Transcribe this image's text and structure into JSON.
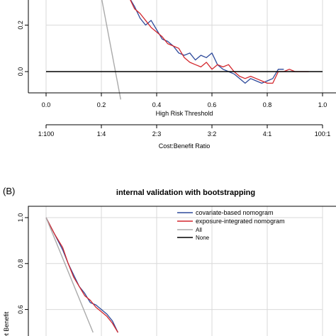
{
  "chart_data": [
    {
      "type": "line",
      "panel": "",
      "title": "",
      "xlabel": "High Risk Threshold",
      "ylabel": "",
      "xlim": [
        0,
        1
      ],
      "ylim": [
        -0.1,
        0.32
      ],
      "x_ticks": [
        "0.0",
        "0.2",
        "0.4",
        "0.6",
        "0.8",
        "1.0"
      ],
      "y_ticks": [
        "0.0",
        "0.2"
      ],
      "secondary_axis": {
        "label": "Cost:Benefit Ratio",
        "ticks": [
          "1:100",
          "1:4",
          "2:3",
          "3:2",
          "4:1",
          "100:1"
        ]
      },
      "series": [
        {
          "color": "#2e4a9b",
          "x": [
            0.3,
            0.32,
            0.34,
            0.36,
            0.38,
            0.4,
            0.42,
            0.44,
            0.46,
            0.48,
            0.5,
            0.52,
            0.54,
            0.56,
            0.58,
            0.6,
            0.62,
            0.64,
            0.66,
            0.68,
            0.7,
            0.72,
            0.74,
            0.76,
            0.78,
            0.8,
            0.82,
            0.84,
            0.86
          ],
          "y": [
            0.32,
            0.28,
            0.23,
            0.2,
            0.22,
            0.18,
            0.14,
            0.13,
            0.11,
            0.08,
            0.07,
            0.08,
            0.05,
            0.07,
            0.06,
            0.08,
            0.03,
            0.01,
            0.0,
            -0.01,
            -0.03,
            -0.05,
            -0.03,
            -0.04,
            -0.05,
            -0.04,
            -0.03,
            0.01,
            0.01
          ]
        },
        {
          "color": "#d3272d",
          "x": [
            0.3,
            0.32,
            0.34,
            0.36,
            0.38,
            0.4,
            0.42,
            0.44,
            0.46,
            0.48,
            0.5,
            0.52,
            0.54,
            0.56,
            0.58,
            0.6,
            0.62,
            0.64,
            0.66,
            0.68,
            0.7,
            0.72,
            0.74,
            0.76,
            0.78,
            0.8,
            0.82,
            0.84,
            0.86,
            0.88,
            0.9,
            0.95
          ],
          "y": [
            0.32,
            0.27,
            0.25,
            0.22,
            0.19,
            0.17,
            0.15,
            0.12,
            0.11,
            0.1,
            0.06,
            0.04,
            0.03,
            0.02,
            0.04,
            0.01,
            0.03,
            0.02,
            0.03,
            0.0,
            -0.02,
            -0.03,
            -0.02,
            -0.03,
            -0.04,
            -0.05,
            -0.05,
            0.0,
            0.0,
            0.01,
            0.0,
            0.0
          ]
        },
        {
          "color": "#aaaaaa",
          "x": [
            0.2,
            0.27
          ],
          "y": [
            0.32,
            -0.12
          ]
        },
        {
          "color": "#000000",
          "x": [
            0.0,
            1.0
          ],
          "y": [
            0.0,
            0.0
          ]
        }
      ]
    },
    {
      "type": "line",
      "panel": "(B)",
      "title": "internal validation with bootstrapping",
      "xlabel": "",
      "ylabel": "Net Benefit",
      "xlim": [
        0,
        1
      ],
      "ylim": [
        0.5,
        1.0
      ],
      "y_ticks": [
        "1.0",
        "0.8",
        "0.6"
      ],
      "legend": {
        "placement": "top-right",
        "items": [
          {
            "label": "covariate-based nomogram",
            "color": "#2e4a9b"
          },
          {
            "label": "exposure-integrated nomogram",
            "color": "#d3272d"
          },
          {
            "label": "All",
            "color": "#aaaaaa"
          },
          {
            "label": "None",
            "color": "#000000"
          }
        ]
      },
      "series": [
        {
          "color": "#2e4a9b",
          "x": [
            0.0,
            0.03,
            0.06,
            0.08,
            0.1,
            0.12,
            0.14,
            0.16,
            0.18,
            0.2,
            0.22,
            0.24,
            0.26
          ],
          "y": [
            1.0,
            0.93,
            0.86,
            0.8,
            0.75,
            0.7,
            0.67,
            0.63,
            0.62,
            0.6,
            0.58,
            0.55,
            0.5
          ]
        },
        {
          "color": "#d3272d",
          "x": [
            0.0,
            0.03,
            0.06,
            0.08,
            0.1,
            0.12,
            0.14,
            0.16,
            0.18,
            0.2,
            0.22,
            0.24,
            0.26
          ],
          "y": [
            1.0,
            0.93,
            0.87,
            0.8,
            0.74,
            0.7,
            0.66,
            0.64,
            0.61,
            0.59,
            0.57,
            0.54,
            0.5
          ]
        },
        {
          "color": "#aaaaaa",
          "x": [
            0.0,
            0.17
          ],
          "y": [
            1.0,
            0.5
          ]
        }
      ]
    }
  ]
}
